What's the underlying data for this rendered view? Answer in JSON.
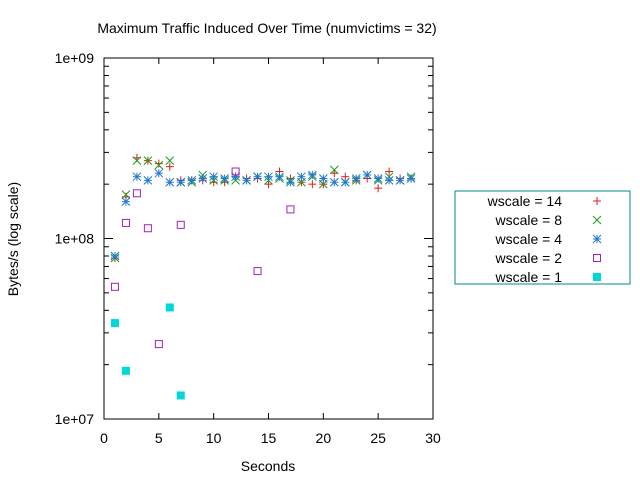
{
  "chart_data": {
    "type": "scatter",
    "title": "Maximum Traffic Induced Over Time (numvictims = 32)",
    "xlabel": "Seconds",
    "ylabel": "Bytes/s (log scale)",
    "xlim": [
      0,
      30
    ],
    "ylim": [
      10000000,
      1000000000
    ],
    "yscale": "log",
    "x_ticks": [
      0,
      5,
      10,
      15,
      20,
      25,
      30
    ],
    "x_tick_labels": [
      "0",
      "5",
      "10",
      "15",
      "20",
      "25",
      "30"
    ],
    "y_ticks": [
      10000000,
      100000000,
      1000000000
    ],
    "y_tick_labels": [
      "1e+07",
      "1e+08",
      "1e+09"
    ],
    "grid": false,
    "legend_position": "right",
    "series": [
      {
        "name": "wscale = 14",
        "marker": "plus",
        "color": "#e41a1c",
        "x": [
          1,
          2,
          3,
          4,
          5,
          6,
          7,
          8,
          9,
          10,
          11,
          12,
          13,
          14,
          15,
          16,
          17,
          18,
          19,
          20,
          21,
          22,
          23,
          24,
          25,
          26,
          27,
          28
        ],
        "y": [
          78000000,
          170000000,
          280000000,
          270000000,
          260000000,
          250000000,
          210000000,
          210000000,
          210000000,
          205000000,
          205000000,
          220000000,
          215000000,
          215000000,
          200000000,
          235000000,
          215000000,
          205000000,
          200000000,
          200000000,
          230000000,
          220000000,
          210000000,
          215000000,
          190000000,
          235000000,
          215000000,
          215000000
        ]
      },
      {
        "name": "wscale = 8",
        "marker": "cross",
        "color": "#1a9e1a",
        "x": [
          1,
          2,
          3,
          4,
          5,
          6,
          7,
          8,
          9,
          10,
          11,
          12,
          13,
          14,
          15,
          16,
          17,
          18,
          19,
          20,
          21,
          22,
          23,
          24,
          25,
          26,
          27,
          28
        ],
        "y": [
          78000000,
          175000000,
          270000000,
          270000000,
          255000000,
          270000000,
          205000000,
          205000000,
          225000000,
          210000000,
          210000000,
          210000000,
          210000000,
          220000000,
          210000000,
          215000000,
          210000000,
          205000000,
          220000000,
          200000000,
          240000000,
          205000000,
          210000000,
          225000000,
          210000000,
          220000000,
          210000000,
          220000000
        ]
      },
      {
        "name": "wscale = 4",
        "marker": "star",
        "color": "#1f77d0",
        "x": [
          1,
          2,
          3,
          4,
          5,
          6,
          7,
          8,
          9,
          10,
          11,
          12,
          13,
          14,
          15,
          16,
          17,
          18,
          19,
          20,
          21,
          22,
          23,
          24,
          25,
          26,
          27,
          28
        ],
        "y": [
          80000000,
          160000000,
          220000000,
          210000000,
          230000000,
          205000000,
          205000000,
          210000000,
          215000000,
          220000000,
          215000000,
          220000000,
          210000000,
          220000000,
          220000000,
          220000000,
          205000000,
          220000000,
          225000000,
          215000000,
          205000000,
          205000000,
          215000000,
          225000000,
          215000000,
          210000000,
          210000000,
          215000000
        ]
      },
      {
        "name": "wscale = 2",
        "marker": "open-square",
        "color": "#a020c0",
        "x": [
          1,
          2,
          3,
          4,
          5,
          7,
          12,
          14,
          17
        ],
        "y": [
          54000000,
          122000000,
          178000000,
          114000000,
          26000000,
          119000000,
          235000000,
          66000000,
          145000000
        ]
      },
      {
        "name": "wscale = 1",
        "marker": "filled-square",
        "color": "#00d8d8",
        "x": [
          1,
          2,
          6,
          7
        ],
        "y": [
          34000000,
          18500000,
          41500000,
          13500000
        ]
      }
    ]
  }
}
